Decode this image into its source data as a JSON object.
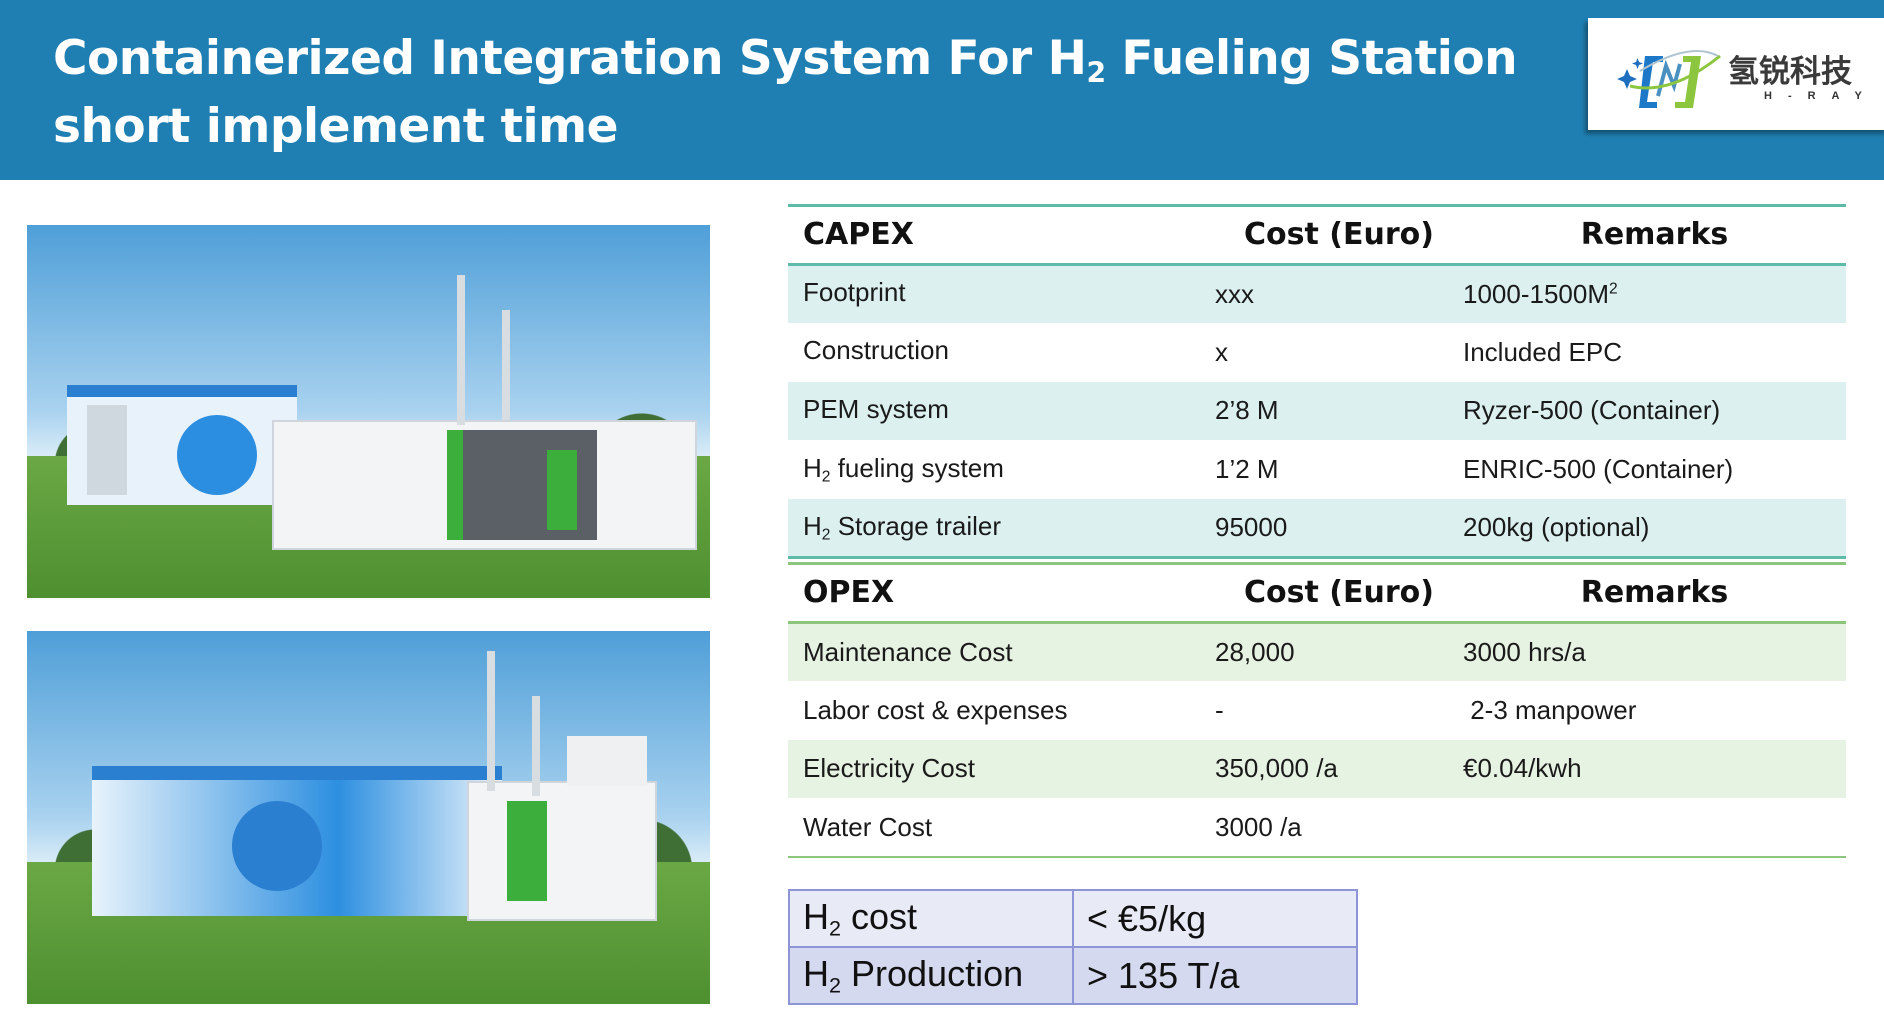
{
  "header": {
    "title_line1_pre": "Containerized Integration System For H",
    "title_line1_sub": "2",
    "title_line1_post": " Fueling Station",
    "title_line2": "short implement time"
  },
  "logo": {
    "text_cn": "氢锐科技",
    "text_en": "H-RAY"
  },
  "colors": {
    "header": "#1f7fb2",
    "capex_row": "#dcf0f0",
    "opex_row": "#e7f3e2",
    "capex_line": "#5dbba8",
    "opex_line": "#8cc57c",
    "summary_border": "#8e95d6"
  },
  "images": [
    {
      "icon": "container-station-photo-1"
    },
    {
      "icon": "container-station-photo-2"
    }
  ],
  "capex": {
    "headers": [
      "CAPEX",
      "Cost (Euro)",
      "Remarks"
    ],
    "rows": [
      {
        "pre": "",
        "sub": "",
        "item": "Footprint",
        "cost": "xxx",
        "remark": "1000-1500M",
        "remark_sup": "2"
      },
      {
        "pre": "",
        "sub": "",
        "item": "Construction",
        "cost": "x",
        "remark": "Included EPC",
        "remark_sup": ""
      },
      {
        "pre": "",
        "sub": "",
        "item": "PEM system",
        "cost": "2’8 M",
        "remark": "Ryzer-500 (Container)",
        "remark_sup": ""
      },
      {
        "pre": "H",
        "sub": "2",
        "item": " fueling system",
        "cost": "1’2 M",
        "remark": "ENRIC-500 (Container)",
        "remark_sup": ""
      },
      {
        "pre": "H",
        "sub": "2",
        "item": " Storage trailer",
        "cost": "95000",
        "remark": "200kg (optional)",
        "remark_sup": ""
      }
    ]
  },
  "opex": {
    "headers": [
      "OPEX",
      "Cost (Euro)",
      "Remarks"
    ],
    "rows": [
      {
        "item": "Maintenance Cost",
        "cost": "28,000",
        "remark": "3000 hrs/a"
      },
      {
        "item": "Labor cost & expenses",
        "cost": "-",
        "remark": " 2-3 manpower"
      },
      {
        "item": "Electricity Cost",
        "cost": "350,000 /a",
        "remark": "€0.04/kwh"
      },
      {
        "item": "Water Cost",
        "cost": "3000 /a",
        "remark": ""
      }
    ]
  },
  "summary": [
    {
      "pre": "H",
      "sub": "2",
      "label": " cost",
      "value": "< €5/kg"
    },
    {
      "pre": "H",
      "sub": "2",
      "label": " Production",
      "value": "> 135  T/a"
    }
  ]
}
